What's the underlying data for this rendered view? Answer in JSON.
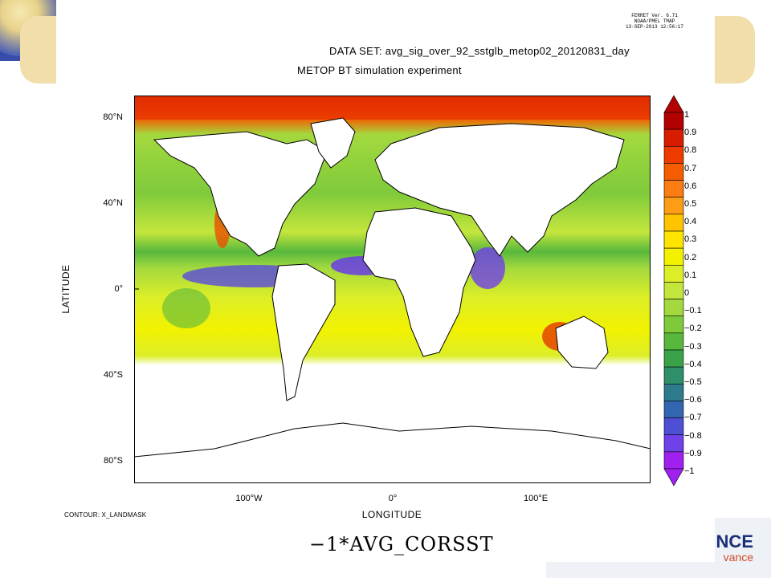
{
  "header": {
    "version_lines": [
      "FERRET Ver. 6.71",
      "NOAA/PMEL TMAP",
      "13-SEP-2013 12:56:17"
    ],
    "dataset": "DATA SET: avg_sig_over_92_sstglb_metop02_20120831_day",
    "subtitle": "METOP BT simulation experiment"
  },
  "axes": {
    "xlabel": "LONGITUDE",
    "ylabel": "LATITUDE",
    "x_ticks": [
      "100°W",
      "0°",
      "100°E"
    ],
    "y_ticks": [
      "80°N",
      "40°N",
      "0°",
      "40°S",
      "80°S"
    ]
  },
  "footer": {
    "contour": "CONTOUR: X_LANDMASK",
    "variable": "−1*AVG_CORSST"
  },
  "branding": {
    "line1": "NCE",
    "line2": "vance"
  },
  "colorbar": {
    "labels": [
      "1",
      "0.9",
      "0.8",
      "0.7",
      "0.6",
      "0.5",
      "0.4",
      "0.3",
      "0.2",
      "0.1",
      "0",
      "−0.1",
      "−0.2",
      "−0.3",
      "−0.4",
      "−0.5",
      "−0.6",
      "−0.7",
      "−0.8",
      "−0.9",
      "−1"
    ],
    "colors": [
      "#b30000",
      "#d81c00",
      "#ef3a00",
      "#f65c00",
      "#fb7c10",
      "#fd9c15",
      "#ffc400",
      "#ffe400",
      "#f2f200",
      "#dcee28",
      "#c4e63c",
      "#a3d93e",
      "#7fca3b",
      "#58b83d",
      "#3aa34a",
      "#2f8f6a",
      "#2d7b8c",
      "#3366b0",
      "#4f4fd6",
      "#7040e8",
      "#a020f0"
    ]
  },
  "map": {
    "x_range": [
      -180,
      180
    ],
    "y_range": [
      -90,
      90
    ],
    "land_color": "#ffffff",
    "coastline_color": "#000000"
  }
}
